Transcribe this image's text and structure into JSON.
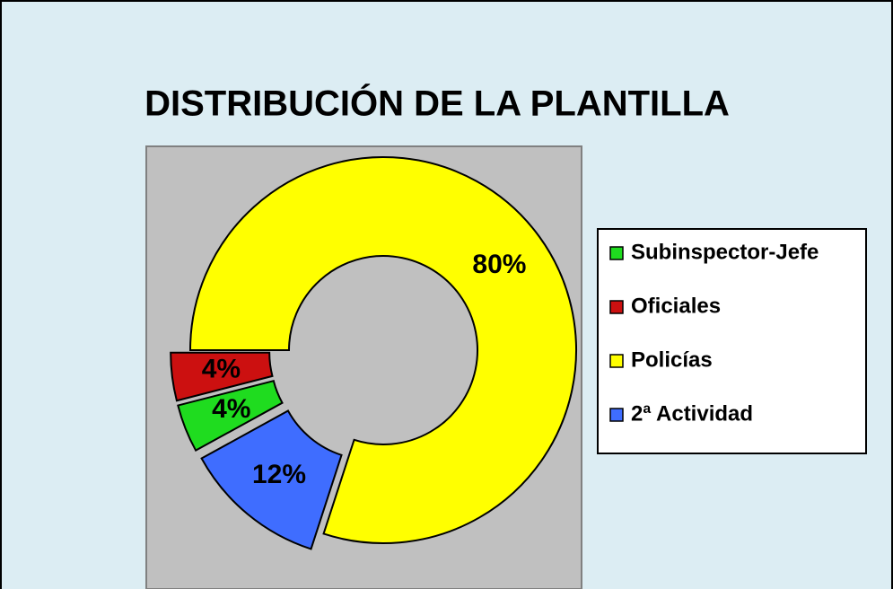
{
  "chart_data": {
    "type": "donut",
    "title": "DISTRIBUCIÓN DE LA PLANTILLA",
    "categories": [
      "Subinspector-Jefe",
      "Oficiales",
      "Policías",
      "2ª Actividad"
    ],
    "values": [
      4,
      4,
      80,
      12
    ],
    "value_labels": [
      "4%",
      "4%",
      "80%",
      "12%"
    ],
    "colors": [
      "#1fdc1f",
      "#cc1010",
      "#ffff00",
      "#3f6dff"
    ],
    "legend": "right"
  }
}
